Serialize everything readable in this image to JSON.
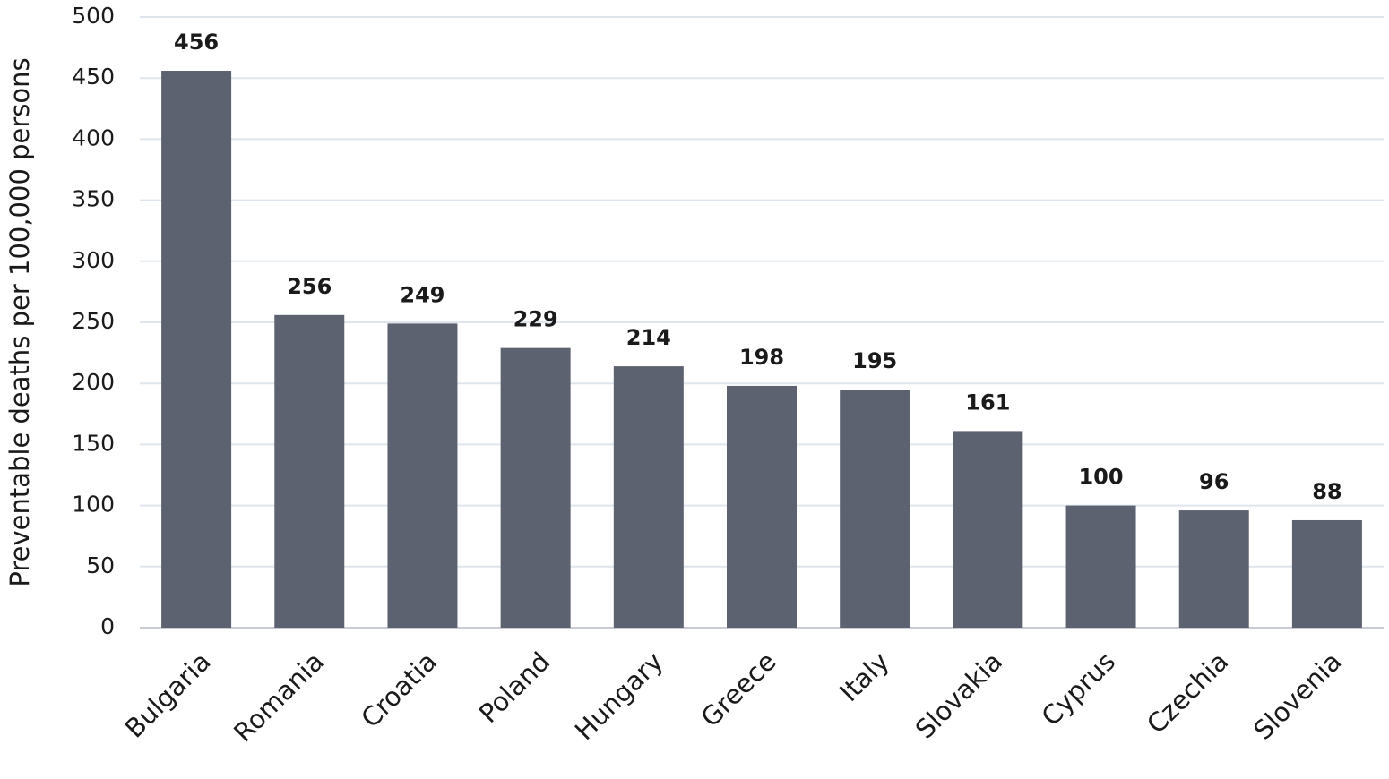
{
  "chart_data": {
    "type": "bar",
    "y_label": "Preventable deaths per 100,000 persons",
    "categories": [
      "Bulgaria",
      "Romania",
      "Croatia",
      "Poland",
      "Hungary",
      "Greece",
      "Italy",
      "Slovakia",
      "Cyprus",
      "Czechia",
      "Slovenia"
    ],
    "values": [
      456,
      256,
      249,
      229,
      214,
      198,
      195,
      161,
      100,
      96,
      88
    ],
    "color": "#5d6270",
    "ylim": [
      0,
      500
    ],
    "yticks": [
      0,
      50,
      100,
      150,
      200,
      250,
      300,
      350,
      400,
      450,
      500
    ],
    "grid": true
  }
}
